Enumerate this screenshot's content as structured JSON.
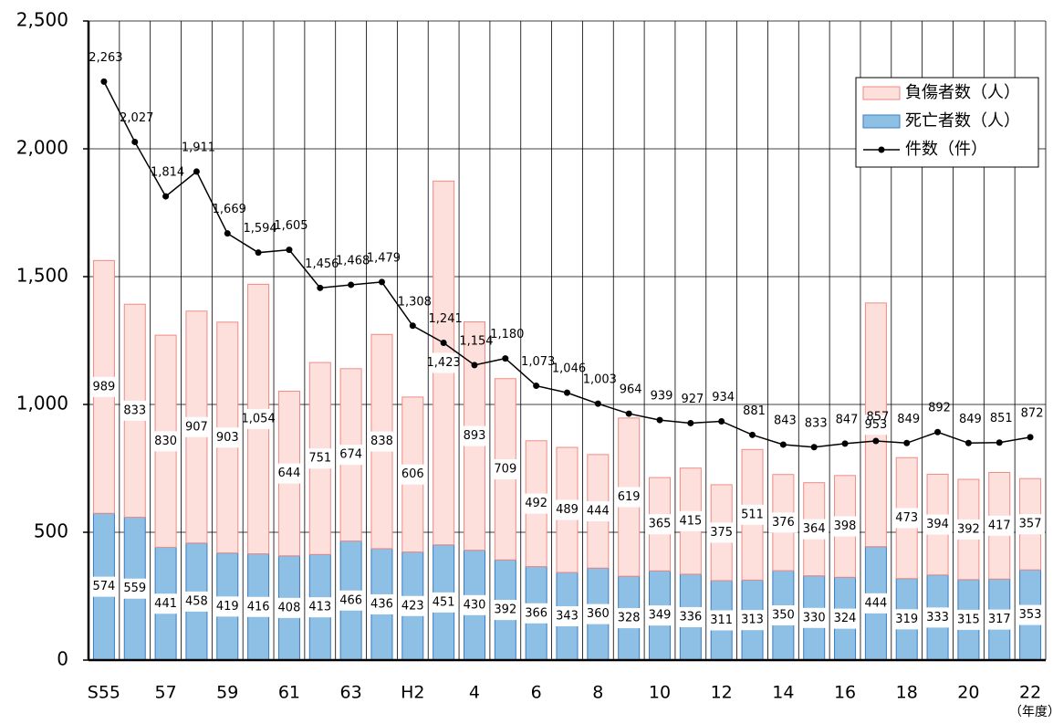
{
  "chart_data": {
    "type": "bar_line",
    "x_label": "（年度）",
    "categories": [
      "S55",
      null,
      "57",
      null,
      "59",
      null,
      "61",
      null,
      "63",
      null,
      "H2",
      null,
      "4",
      null,
      "6",
      null,
      "8",
      null,
      "10",
      null,
      "12",
      null,
      "14",
      null,
      "16",
      null,
      "18",
      null,
      "20",
      null,
      "22"
    ],
    "series": [
      {
        "name": "負傷者数（人）",
        "kind": "bar",
        "stack": true,
        "color": "#fde0dc",
        "edge": "#f08a84",
        "values": [
          989,
          833,
          830,
          907,
          903,
          1054,
          644,
          751,
          674,
          838,
          606,
          1423,
          893,
          709,
          492,
          489,
          444,
          619,
          365,
          415,
          375,
          511,
          376,
          364,
          398,
          953,
          473,
          394,
          392,
          417,
          357
        ],
        "value_labels": [
          "989",
          "833",
          "830",
          "907",
          "903",
          "1,054",
          "644",
          "751",
          "674",
          "838",
          "606",
          "1,423",
          "893",
          "709",
          "492",
          "489",
          "444",
          "619",
          "365",
          "415",
          "375",
          "511",
          "376",
          "364",
          "398",
          "953",
          "473",
          "394",
          "392",
          "417",
          "357"
        ]
      },
      {
        "name": "死亡者数（人）",
        "kind": "bar",
        "stack": true,
        "color": "#8ec0e6",
        "edge": "#3a7cc0",
        "values": [
          574,
          559,
          441,
          458,
          419,
          416,
          408,
          413,
          466,
          436,
          423,
          451,
          430,
          392,
          366,
          343,
          360,
          328,
          349,
          336,
          311,
          313,
          350,
          330,
          324,
          444,
          319,
          333,
          315,
          317,
          353
        ]
      },
      {
        "name": "件数（件）",
        "kind": "line",
        "color": "#000000",
        "values": [
          2263,
          2027,
          1814,
          1911,
          1669,
          1594,
          1605,
          1456,
          1468,
          1479,
          1308,
          1241,
          1154,
          1180,
          1073,
          1046,
          1003,
          964,
          939,
          927,
          934,
          881,
          843,
          833,
          847,
          857,
          849,
          892,
          849,
          851,
          872
        ],
        "value_labels": [
          "2,263",
          "2,027",
          "1,814",
          "1,911",
          "1,669",
          "1,594",
          "1,605",
          "1,456",
          "1,468",
          "1,479",
          "1,308",
          "1,241",
          "1,154",
          "1,180",
          "1,073",
          "1,046",
          "1,003",
          "964",
          "939",
          "927",
          "934",
          "881",
          "843",
          "833",
          "847",
          "857",
          "849",
          "892",
          "849",
          "851",
          "872"
        ]
      }
    ],
    "ylim": [
      0,
      2500
    ],
    "yticks": [
      0,
      500,
      {
        "value": 1000,
        "label": "1,000"
      },
      {
        "value": 1500,
        "label": "1,500"
      },
      {
        "value": 2000,
        "label": "2,000"
      },
      {
        "value": 2500,
        "label": "2,500"
      }
    ],
    "grid": true,
    "legend": "upper right"
  }
}
